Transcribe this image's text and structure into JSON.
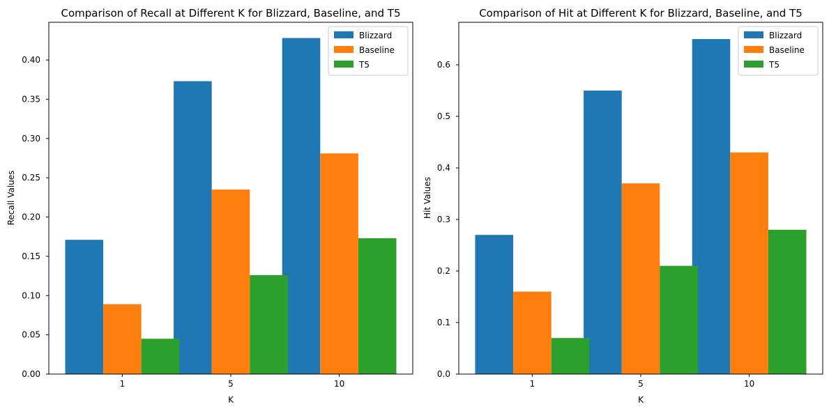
{
  "chart_data": [
    {
      "type": "bar",
      "title": "Comparison of Recall at Different K for Blizzard, Baseline, and T5",
      "xlabel": "K",
      "ylabel": "Recall Values",
      "categories": [
        "1",
        "5",
        "10"
      ],
      "series": [
        {
          "name": "Blizzard",
          "color": "#1f77b4",
          "values": [
            0.171,
            0.373,
            0.428
          ]
        },
        {
          "name": "Baseline",
          "color": "#ff7f0e",
          "values": [
            0.089,
            0.235,
            0.281
          ]
        },
        {
          "name": "T5",
          "color": "#2ca02c",
          "values": [
            0.045,
            0.126,
            0.173
          ]
        }
      ],
      "ylim": [
        0,
        0.448
      ],
      "yticks": [
        0.0,
        0.05,
        0.1,
        0.15,
        0.2,
        0.25,
        0.3,
        0.35,
        0.4
      ],
      "ytick_labels": [
        "0.00",
        "0.05",
        "0.10",
        "0.15",
        "0.20",
        "0.25",
        "0.30",
        "0.35",
        "0.40"
      ],
      "legend": "top-right",
      "grid": false
    },
    {
      "type": "bar",
      "title": "Comparison of Hit at Different K for Blizzard, Baseline, and T5",
      "xlabel": "K",
      "ylabel": "Hit Values",
      "categories": [
        "1",
        "5",
        "10"
      ],
      "series": [
        {
          "name": "Blizzard",
          "color": "#1f77b4",
          "values": [
            0.27,
            0.55,
            0.65
          ]
        },
        {
          "name": "Baseline",
          "color": "#ff7f0e",
          "values": [
            0.16,
            0.37,
            0.43
          ]
        },
        {
          "name": "T5",
          "color": "#2ca02c",
          "values": [
            0.07,
            0.21,
            0.28
          ]
        }
      ],
      "ylim": [
        0,
        0.6825
      ],
      "yticks": [
        0.0,
        0.1,
        0.2,
        0.3,
        0.4,
        0.5,
        0.6
      ],
      "ytick_labels": [
        "0.0",
        "0.1",
        "0.2",
        "0.3",
        "0.4",
        "0.5",
        "0.6"
      ],
      "legend": "top-right",
      "grid": false
    }
  ]
}
